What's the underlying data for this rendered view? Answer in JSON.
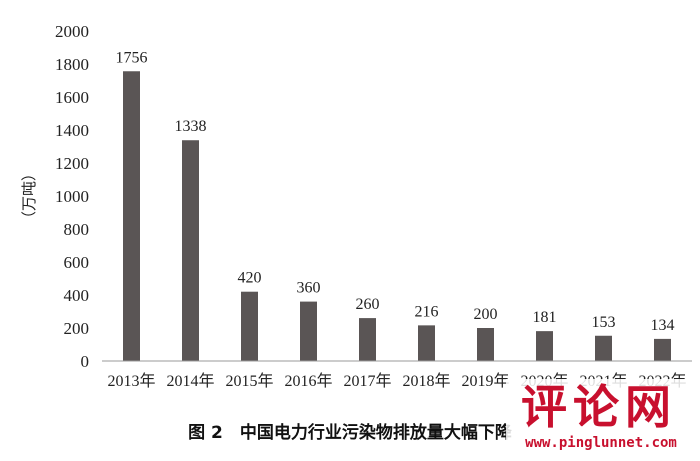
{
  "chart_data": {
    "type": "bar",
    "categories": [
      "2013年",
      "2014年",
      "2015年",
      "2016年",
      "2017年",
      "2018年",
      "2019年",
      "2020年",
      "2021年",
      "2022年"
    ],
    "values": [
      1756,
      1338,
      420,
      360,
      260,
      216,
      200,
      181,
      153,
      134
    ],
    "data_labels": [
      "1756",
      "1338",
      "420",
      "360",
      "260",
      "216",
      "200",
      "181",
      "153",
      "134"
    ],
    "ylabel": "（万吨）",
    "ylim": [
      0,
      2000
    ],
    "yticks": [
      0,
      200,
      400,
      600,
      800,
      1000,
      1200,
      1400,
      1600,
      1800,
      2000
    ],
    "bar_color": "#5a5555",
    "grid": false
  },
  "caption": "图 2　中国电力行业污染物排放量大幅下降",
  "watermark": {
    "text": "评论网",
    "url": "www.pinglunnet.com",
    "color": "#c8102e"
  }
}
